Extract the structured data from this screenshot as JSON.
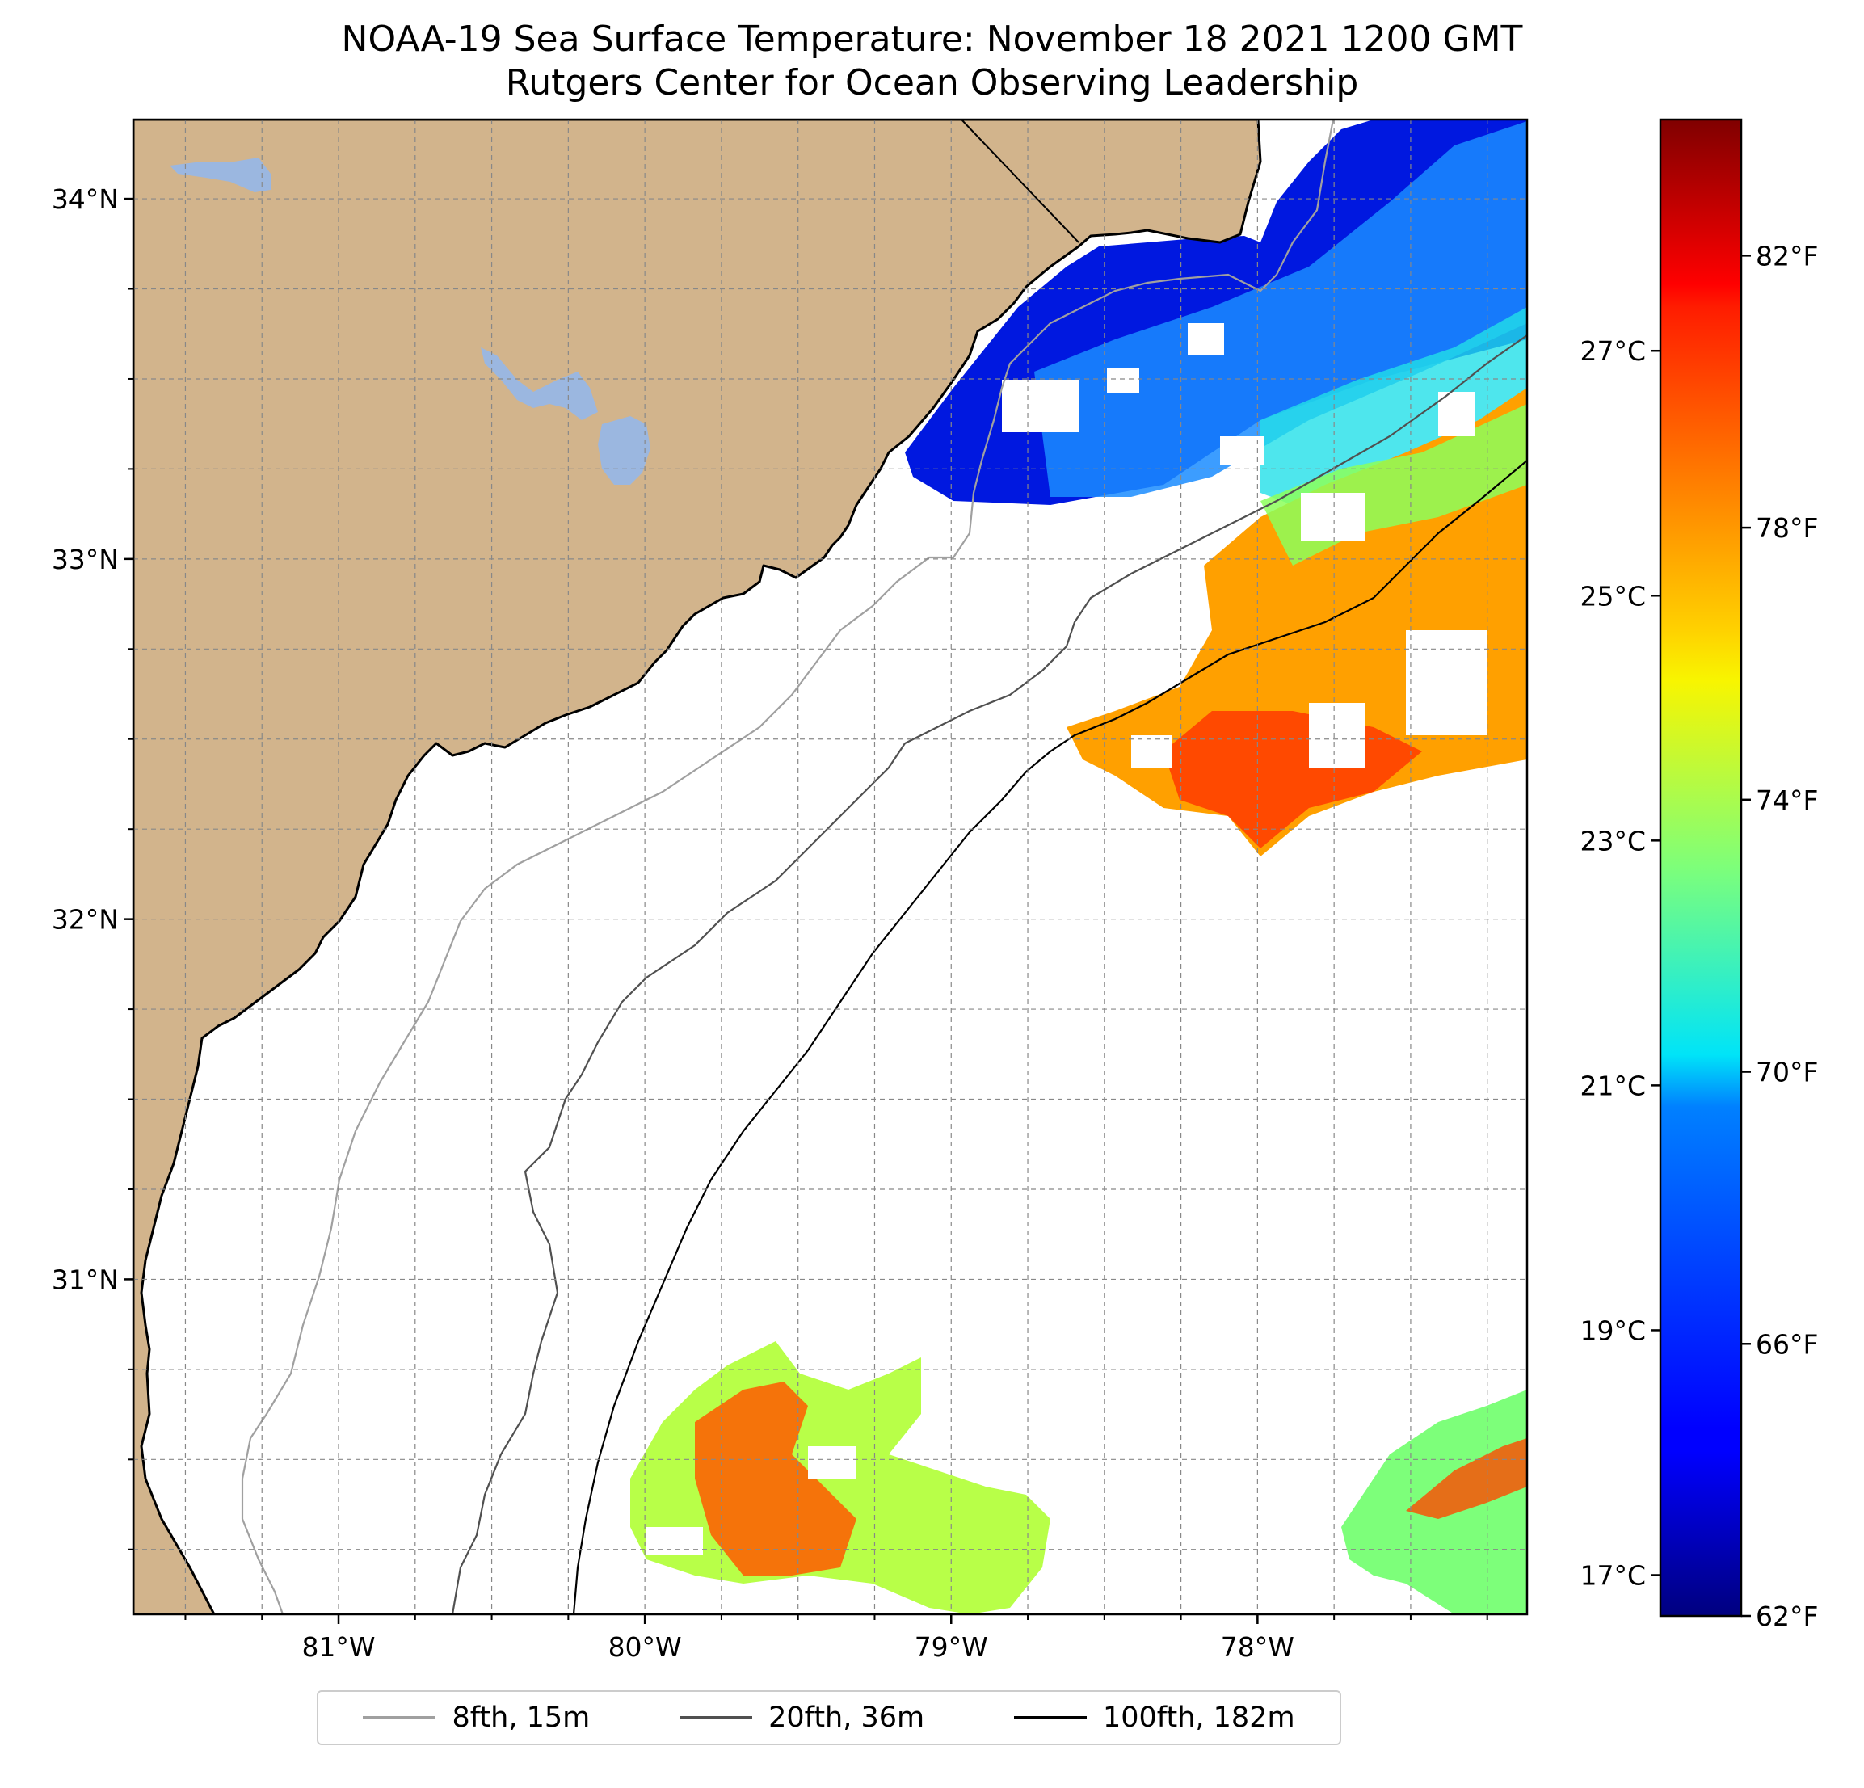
{
  "title": {
    "line1": "NOAA-19 Sea Surface Temperature: November 18 2021 1200 GMT",
    "line2": "Rutgers Center for Ocean Observing Leadership"
  },
  "map": {
    "lon_range": [
      -81.67,
      -77.12
    ],
    "lat_range": [
      30.07,
      34.22
    ],
    "lat_ticks": [
      {
        "value": 31,
        "label": "31°N"
      },
      {
        "value": 32,
        "label": "32°N"
      },
      {
        "value": 33,
        "label": "33°N"
      },
      {
        "value": 34,
        "label": "34°N"
      }
    ],
    "lon_ticks": [
      {
        "value": -81,
        "label": "81°W"
      },
      {
        "value": -80,
        "label": "80°W"
      },
      {
        "value": -79,
        "label": "79°W"
      },
      {
        "value": -78,
        "label": "78°W"
      }
    ],
    "land_color": "#d2b48c",
    "water_body_color": "#9bb7e0",
    "gridlines": "dashed"
  },
  "colorbar": {
    "colormap": "jet",
    "f_range": [
      62,
      84
    ],
    "f_ticks": [
      {
        "value": 62,
        "label": "62°F"
      },
      {
        "value": 66,
        "label": "66°F"
      },
      {
        "value": 70,
        "label": "70°F"
      },
      {
        "value": 74,
        "label": "74°F"
      },
      {
        "value": 78,
        "label": "78°F"
      },
      {
        "value": 82,
        "label": "82°F"
      }
    ],
    "c_ticks": [
      {
        "value": 17,
        "label": "17°C"
      },
      {
        "value": 19,
        "label": "19°C"
      },
      {
        "value": 21,
        "label": "21°C"
      },
      {
        "value": 23,
        "label": "23°C"
      },
      {
        "value": 25,
        "label": "25°C"
      },
      {
        "value": 27,
        "label": "27°C"
      }
    ]
  },
  "legend": {
    "items": [
      {
        "label": "8fth, 15m",
        "color": "#a0a0a0"
      },
      {
        "label": "20fth, 36m",
        "color": "#505050"
      },
      {
        "label": "100fth, 182m",
        "color": "#000000"
      }
    ]
  }
}
